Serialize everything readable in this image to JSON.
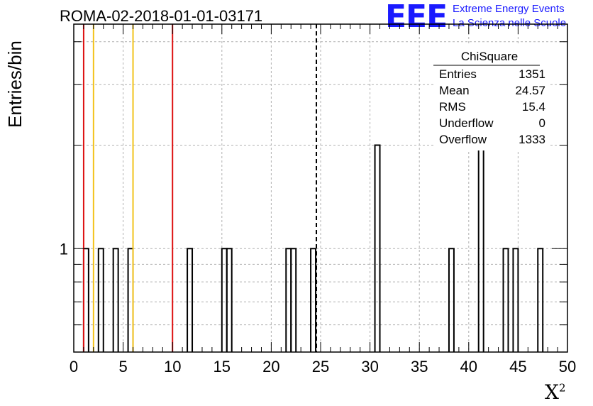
{
  "title": "ROMA-02-2018-01-01-03171",
  "logo": {
    "mark": "EEE",
    "line1": "Extreme Energy Events",
    "line2": "La Scienza nelle Scuole",
    "color": "#1a1aff"
  },
  "stats": {
    "name": "ChiSquare",
    "rows": [
      {
        "label": "Entries",
        "value": "1351"
      },
      {
        "label": "Mean",
        "value": "24.57"
      },
      {
        "label": "RMS",
        "value": "15.4"
      },
      {
        "label": "Underflow",
        "value": "0"
      },
      {
        "label": "Overflow",
        "value": "1333"
      }
    ]
  },
  "chart_data": {
    "type": "bar",
    "title": "ROMA-02-2018-01-01-03171",
    "xlabel": "X",
    "xlabel_superscript": "2",
    "ylabel": "Entries/bin",
    "xlim": [
      0,
      50
    ],
    "ylog": true,
    "ylim": [
      0.5,
      4.5
    ],
    "x_ticks": [
      0,
      5,
      10,
      15,
      20,
      25,
      30,
      35,
      40,
      45,
      50
    ],
    "y_tick_labels": [
      "1"
    ],
    "grid": true,
    "bin_width": 0.5,
    "bins": [
      {
        "x": 1.0,
        "count": 1
      },
      {
        "x": 2.5,
        "count": 1
      },
      {
        "x": 4.0,
        "count": 1
      },
      {
        "x": 5.5,
        "count": 1
      },
      {
        "x": 11.5,
        "count": 1
      },
      {
        "x": 15.0,
        "count": 1
      },
      {
        "x": 15.5,
        "count": 1
      },
      {
        "x": 21.5,
        "count": 1
      },
      {
        "x": 22.0,
        "count": 1
      },
      {
        "x": 24.0,
        "count": 1
      },
      {
        "x": 30.5,
        "count": 2
      },
      {
        "x": 38.0,
        "count": 1
      },
      {
        "x": 41.0,
        "count": 2
      },
      {
        "x": 43.5,
        "count": 1
      },
      {
        "x": 44.5,
        "count": 1
      },
      {
        "x": 47.0,
        "count": 1
      }
    ],
    "reference_lines": [
      {
        "x": 1.0,
        "color": "#dd1111",
        "style": "solid"
      },
      {
        "x": 2.0,
        "color": "#f2c21a",
        "style": "solid"
      },
      {
        "x": 6.0,
        "color": "#f2c21a",
        "style": "solid"
      },
      {
        "x": 10.0,
        "color": "#dd1111",
        "style": "solid"
      },
      {
        "x": 24.57,
        "color": "#000000",
        "style": "dashed"
      }
    ]
  }
}
